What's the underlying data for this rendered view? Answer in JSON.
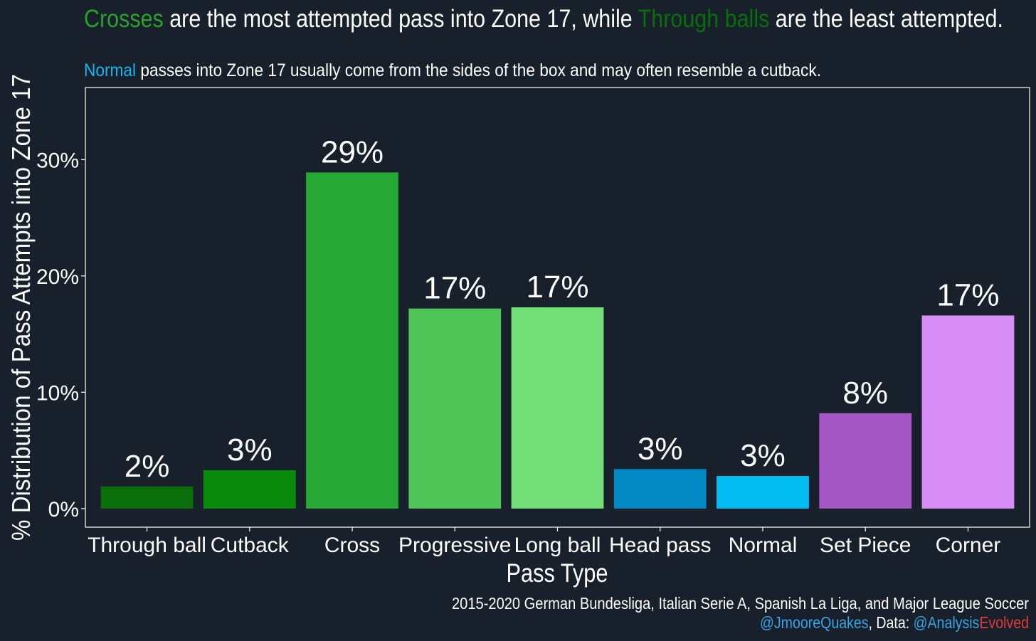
{
  "title": {
    "part1": "Crosses",
    "part2": " are the most attempted pass into Zone 17, while ",
    "part3": "Through balls",
    "part4": " are the least attempted."
  },
  "subtitle": {
    "part1": "Normal",
    "part2": " passes into Zone 17 usually come from the sides of the box and may often resemble a cutback."
  },
  "caption": {
    "line1": "2015-2020 German Bundesliga, Italian Serie A, Spanish La Liga, and Major League Soccer",
    "handle": "@JmooreQuakes",
    "data_label": ", Data: ",
    "source_a": "@Analysis",
    "source_b": "Evolved"
  },
  "colors": {
    "background": "#17202b",
    "text": "#ffffff",
    "title_crosses": "#2ca02c",
    "title_through": "#0a6e0a",
    "subtitle_normal": "#1ab6f0",
    "handle": "#3aa3e3",
    "source_a": "#3aa3e3",
    "source_b": "#e03a3a"
  },
  "chart_data": {
    "type": "bar",
    "xlabel": "Pass Type",
    "ylabel": "% Distribution of Pass Attempts into Zone 17",
    "ylim": [
      -1.6,
      36.2
    ],
    "yticks": [
      0,
      10,
      20,
      30
    ],
    "ytick_labels": [
      "0%",
      "10%",
      "20%",
      "30%"
    ],
    "grid": false,
    "categories": [
      "Through ball",
      "Cutback",
      "Cross",
      "Progressive",
      "Long ball",
      "Head pass",
      "Normal",
      "Set Piece",
      "Corner"
    ],
    "values": [
      1.9,
      3.3,
      28.9,
      17.2,
      17.3,
      3.4,
      2.8,
      8.2,
      16.6
    ],
    "value_labels": [
      "2%",
      "3%",
      "29%",
      "17%",
      "17%",
      "3%",
      "3%",
      "8%",
      "17%"
    ],
    "bar_colors": [
      "#0a6e0a",
      "#0a8a0a",
      "#28a834",
      "#4ec457",
      "#72df76",
      "#0288c2",
      "#02bcf2",
      "#a556c5",
      "#d78cf6"
    ]
  }
}
